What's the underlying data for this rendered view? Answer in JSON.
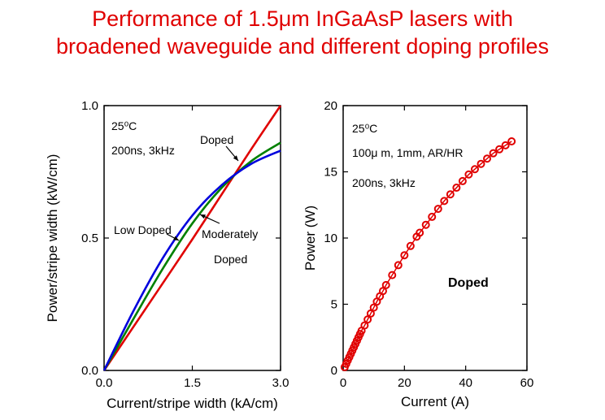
{
  "title_line1": "Performance of 1.5μm InGaAsP lasers with",
  "title_line2": "broadened waveguide and different doping profiles",
  "chart_data": [
    {
      "type": "line",
      "xlabel": "Current/stripe width (kA/cm)",
      "ylabel": "Power/stripe width (kW/cm)",
      "xlim": [
        0,
        3.0
      ],
      "ylim": [
        0,
        1.0
      ],
      "xticks": [
        "0.0",
        "1.5",
        "3.0"
      ],
      "yticks": [
        "0.0",
        "0.5",
        "1.0"
      ],
      "annotations": [
        "25⁰C",
        "200ns, 3kHz"
      ],
      "series": [
        {
          "name": "Doped",
          "color": "#e00000",
          "x": [
            0,
            0.5,
            1.0,
            1.5,
            2.0,
            2.5,
            3.0
          ],
          "y": [
            0,
            0.165,
            0.33,
            0.495,
            0.665,
            0.835,
            1.0
          ]
        },
        {
          "name": "Moderately Doped",
          "color": "#008000",
          "x": [
            0,
            0.5,
            1.0,
            1.5,
            2.0,
            2.5,
            3.0
          ],
          "y": [
            0,
            0.195,
            0.385,
            0.555,
            0.69,
            0.79,
            0.86
          ]
        },
        {
          "name": "Low Doped",
          "color": "#0000dd",
          "x": [
            0,
            0.5,
            1.0,
            1.5,
            2.0,
            2.5,
            3.0
          ],
          "y": [
            0,
            0.225,
            0.425,
            0.585,
            0.7,
            0.78,
            0.83
          ]
        }
      ],
      "labels": [
        "Doped",
        "Low Doped",
        "Moderately",
        "Doped"
      ]
    },
    {
      "type": "scatter",
      "xlabel": "Current (A)",
      "ylabel": "Power (W)",
      "xlim": [
        0,
        60
      ],
      "ylim": [
        0,
        20
      ],
      "xticks": [
        "0",
        "20",
        "40",
        "60"
      ],
      "yticks": [
        "0",
        "5",
        "10",
        "15",
        "20"
      ],
      "annotations": [
        "25⁰C",
        "100μ m, 1mm, AR/HR",
        "200ns, 3kHz"
      ],
      "series": [
        {
          "name": "Doped",
          "color": "#e00000",
          "x": [
            0.5,
            1,
            1.5,
            2,
            2.5,
            3,
            3.5,
            4,
            4.5,
            5,
            5.5,
            6,
            7,
            8,
            9,
            10,
            11,
            12,
            13,
            14,
            16,
            18,
            20,
            22,
            24,
            25,
            27,
            29,
            31,
            33,
            35,
            37,
            39,
            41,
            43,
            45,
            47,
            49,
            51,
            53,
            55
          ],
          "y": [
            0.25,
            0.5,
            0.75,
            1.0,
            1.25,
            1.5,
            1.75,
            2.0,
            2.25,
            2.5,
            2.75,
            3.0,
            3.4,
            3.85,
            4.3,
            4.75,
            5.2,
            5.6,
            6.0,
            6.45,
            7.2,
            7.95,
            8.7,
            9.4,
            10.1,
            10.4,
            11.0,
            11.6,
            12.2,
            12.8,
            13.3,
            13.8,
            14.3,
            14.8,
            15.2,
            15.6,
            16.0,
            16.4,
            16.7,
            17.0,
            17.3
          ]
        }
      ],
      "labels": [
        "Doped"
      ]
    }
  ]
}
